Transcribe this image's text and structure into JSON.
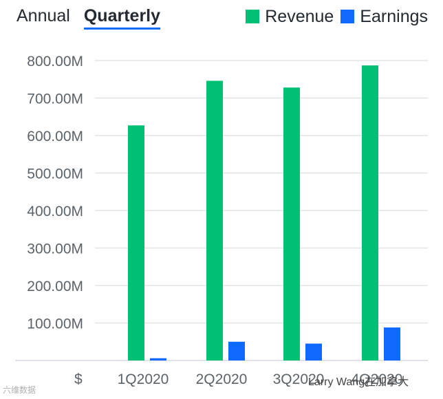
{
  "tabs": [
    {
      "label": "Annual",
      "active": false
    },
    {
      "label": "Quarterly",
      "active": true
    }
  ],
  "legend": [
    {
      "label": "Revenue",
      "color": "#00c073"
    },
    {
      "label": "Earnings",
      "color": "#0f69ff"
    }
  ],
  "currency_symbol": "$",
  "chart_data": {
    "type": "bar",
    "categories": [
      "1Q2020",
      "2Q2020",
      "3Q2020",
      "4Q2020"
    ],
    "series": [
      {
        "name": "Revenue",
        "values": [
          627,
          746,
          728,
          787
        ],
        "color": "#00c073"
      },
      {
        "name": "Earnings",
        "values": [
          6,
          50,
          45,
          88
        ],
        "color": "#0f69ff"
      }
    ],
    "y_ticks": [
      100,
      200,
      300,
      400,
      500,
      600,
      700,
      800
    ],
    "y_tick_labels": [
      "100.00M",
      "200.00M",
      "300.00M",
      "400.00M",
      "500.00M",
      "600.00M",
      "700.00M",
      "800.00M"
    ],
    "ylim": [
      0,
      800
    ],
    "grid": true,
    "legend_position": "top-right"
  },
  "watermarks": {
    "left": "六维数据",
    "right": "Larry Wang在加拿大"
  }
}
